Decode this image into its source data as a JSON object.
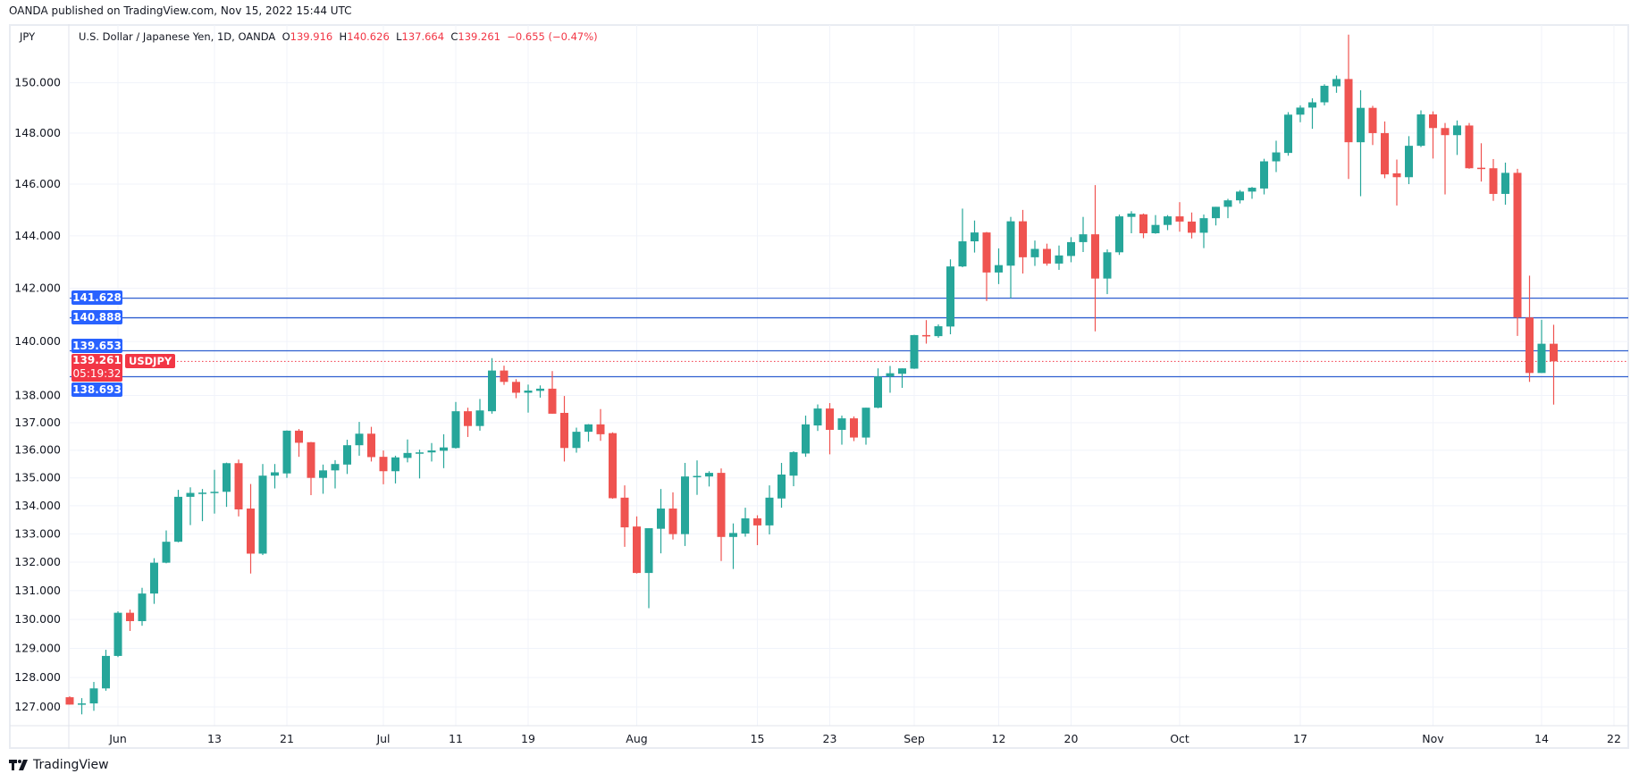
{
  "published": "OANDA published on TradingView.com, Nov 15, 2022 15:44 UTC",
  "currency": "JPY",
  "legend": {
    "title": "U.S. Dollar / Japanese Yen, 1D, OANDA",
    "o_label": "O",
    "o": "139.916",
    "h_label": "H",
    "h": "140.626",
    "l_label": "L",
    "l": "137.664",
    "c_label": "C",
    "c": "139.261",
    "change": "−0.655 (−0.47%)"
  },
  "badges": {
    "level1": "141.628",
    "level2": "140.888",
    "level3": "139.653",
    "level4": "138.693",
    "last_price": "139.261",
    "countdown": "05:19:32",
    "symbol": "USDJPY"
  },
  "branding": {
    "logo_text": "TradingView"
  },
  "colors": {
    "up": "#26a69a",
    "down": "#ef5350",
    "level_line": "#2f5fd0",
    "badge_blue": "#2962ff",
    "last_price": "#f23645",
    "grid": "#f0f3fa"
  },
  "chart_data": {
    "type": "candlestick",
    "symbol": "USDJPY",
    "interval": "1D",
    "y_scale": "log",
    "grid": true,
    "ylim": [
      126.5,
      152.5
    ],
    "y_ticks": [
      "150.000",
      "148.000",
      "146.000",
      "144.000",
      "142.000",
      "140.000",
      "138.000",
      "137.000",
      "136.000",
      "135.000",
      "134.000",
      "133.000",
      "132.000",
      "131.000",
      "130.000",
      "129.000",
      "128.000",
      "127.000"
    ],
    "x_ticks": [
      {
        "label": "Jun",
        "date": "2022-06-01"
      },
      {
        "label": "13",
        "date": "2022-06-13"
      },
      {
        "label": "21",
        "date": "2022-06-21"
      },
      {
        "label": "Jul",
        "date": "2022-07-01"
      },
      {
        "label": "11",
        "date": "2022-07-11"
      },
      {
        "label": "19",
        "date": "2022-07-19"
      },
      {
        "label": "Aug",
        "date": "2022-08-01"
      },
      {
        "label": "15",
        "date": "2022-08-15"
      },
      {
        "label": "23",
        "date": "2022-08-23"
      },
      {
        "label": "Sep",
        "date": "2022-09-01"
      },
      {
        "label": "12",
        "date": "2022-09-12"
      },
      {
        "label": "20",
        "date": "2022-09-20"
      },
      {
        "label": "Oct",
        "date": "2022-10-03"
      },
      {
        "label": "17",
        "date": "2022-10-17"
      },
      {
        "label": "Nov",
        "date": "2022-11-01"
      },
      {
        "label": "14",
        "date": "2022-11-14"
      },
      {
        "label": "22",
        "date": "2022-11-22"
      }
    ],
    "horizontal_levels": [
      141.628,
      140.888,
      139.653,
      138.693
    ],
    "last_price": 139.261,
    "columns": [
      "date",
      "open",
      "high",
      "low",
      "close"
    ],
    "candles": [
      [
        "2022-05-26",
        127.33,
        127.36,
        127.08,
        127.08
      ],
      [
        "2022-05-27",
        127.1,
        127.3,
        126.75,
        127.12
      ],
      [
        "2022-05-30",
        127.12,
        127.85,
        126.87,
        127.63
      ],
      [
        "2022-05-31",
        127.63,
        128.95,
        127.55,
        128.74
      ],
      [
        "2022-06-01",
        128.74,
        130.28,
        128.7,
        130.23
      ],
      [
        "2022-06-02",
        130.23,
        130.34,
        129.6,
        129.94
      ],
      [
        "2022-06-03",
        129.94,
        131.1,
        129.78,
        130.9
      ],
      [
        "2022-06-06",
        130.9,
        132.14,
        130.54,
        131.98
      ],
      [
        "2022-06-07",
        131.98,
        133.12,
        131.96,
        132.72
      ],
      [
        "2022-06-08",
        132.72,
        134.57,
        132.7,
        134.32
      ],
      [
        "2022-06-09",
        134.32,
        134.66,
        133.31,
        134.46
      ],
      [
        "2022-06-10",
        134.44,
        134.6,
        133.45,
        134.47
      ],
      [
        "2022-06-13",
        134.48,
        135.29,
        133.72,
        134.5
      ],
      [
        "2022-06-14",
        134.5,
        135.55,
        133.96,
        135.53
      ],
      [
        "2022-06-15",
        135.53,
        135.66,
        133.62,
        133.87
      ],
      [
        "2022-06-16",
        133.9,
        134.78,
        131.6,
        132.3
      ],
      [
        "2022-06-17",
        132.3,
        135.5,
        132.25,
        135.08
      ],
      [
        "2022-06-20",
        135.08,
        135.5,
        134.62,
        135.2
      ],
      [
        "2022-06-21",
        135.16,
        136.72,
        135.0,
        136.71
      ],
      [
        "2022-06-22",
        136.71,
        136.77,
        135.76,
        136.27
      ],
      [
        "2022-06-23",
        136.29,
        136.3,
        134.38,
        135.0
      ],
      [
        "2022-06-24",
        135.0,
        135.48,
        134.43,
        135.27
      ],
      [
        "2022-06-27",
        135.27,
        135.64,
        134.62,
        135.5
      ],
      [
        "2022-06-28",
        135.48,
        136.38,
        135.14,
        136.18
      ],
      [
        "2022-06-29",
        136.18,
        137.03,
        135.8,
        136.6
      ],
      [
        "2022-06-30",
        136.6,
        136.85,
        135.59,
        135.75
      ],
      [
        "2022-07-01",
        135.76,
        135.99,
        134.77,
        135.24
      ],
      [
        "2022-07-04",
        135.24,
        135.8,
        134.8,
        135.74
      ],
      [
        "2022-07-05",
        135.72,
        136.39,
        135.56,
        135.9
      ],
      [
        "2022-07-06",
        135.9,
        136.02,
        134.98,
        135.92
      ],
      [
        "2022-07-07",
        135.92,
        136.26,
        135.59,
        135.99
      ],
      [
        "2022-07-08",
        135.98,
        136.58,
        135.35,
        136.1
      ],
      [
        "2022-07-11",
        136.08,
        137.76,
        136.06,
        137.42
      ],
      [
        "2022-07-12",
        137.42,
        137.55,
        136.48,
        136.88
      ],
      [
        "2022-07-13",
        136.88,
        137.87,
        136.71,
        137.45
      ],
      [
        "2022-07-14",
        137.42,
        139.38,
        137.33,
        138.92
      ],
      [
        "2022-07-15",
        138.92,
        139.1,
        138.39,
        138.5
      ],
      [
        "2022-07-18",
        138.5,
        138.6,
        137.9,
        138.1
      ],
      [
        "2022-07-19",
        138.1,
        138.4,
        137.37,
        138.18
      ],
      [
        "2022-07-20",
        138.17,
        138.37,
        137.92,
        138.25
      ],
      [
        "2022-07-21",
        138.25,
        138.9,
        137.33,
        137.33
      ],
      [
        "2022-07-22",
        137.36,
        137.98,
        135.59,
        136.08
      ],
      [
        "2022-07-25",
        136.08,
        136.82,
        135.91,
        136.67
      ],
      [
        "2022-07-26",
        136.67,
        136.95,
        136.31,
        136.94
      ],
      [
        "2022-07-27",
        136.94,
        137.5,
        136.34,
        136.58
      ],
      [
        "2022-07-28",
        136.62,
        136.65,
        134.25,
        134.27
      ],
      [
        "2022-07-29",
        134.29,
        134.73,
        132.54,
        133.23
      ],
      [
        "2022-08-01",
        133.26,
        133.62,
        131.6,
        131.62
      ],
      [
        "2022-08-02",
        131.62,
        133.2,
        130.39,
        133.2
      ],
      [
        "2022-08-03",
        133.18,
        134.6,
        132.31,
        133.9
      ],
      [
        "2022-08-04",
        133.9,
        134.48,
        132.8,
        132.99
      ],
      [
        "2022-08-05",
        132.99,
        135.54,
        132.57,
        135.05
      ],
      [
        "2022-08-08",
        135.03,
        135.63,
        134.39,
        135.07
      ],
      [
        "2022-08-09",
        135.05,
        135.24,
        134.69,
        135.18
      ],
      [
        "2022-08-10",
        135.18,
        135.34,
        132.04,
        132.89
      ],
      [
        "2022-08-11",
        132.89,
        133.37,
        131.76,
        133.03
      ],
      [
        "2022-08-12",
        133.01,
        133.93,
        132.9,
        133.55
      ],
      [
        "2022-08-15",
        133.55,
        133.66,
        132.6,
        133.3
      ],
      [
        "2022-08-16",
        133.3,
        134.73,
        132.98,
        134.29
      ],
      [
        "2022-08-17",
        134.26,
        135.54,
        133.93,
        135.12
      ],
      [
        "2022-08-18",
        135.08,
        135.96,
        134.7,
        135.93
      ],
      [
        "2022-08-19",
        135.88,
        137.26,
        135.76,
        136.94
      ],
      [
        "2022-08-22",
        136.9,
        137.67,
        136.7,
        137.52
      ],
      [
        "2022-08-23",
        137.52,
        137.72,
        135.85,
        136.74
      ],
      [
        "2022-08-24",
        136.74,
        137.26,
        136.2,
        137.16
      ],
      [
        "2022-08-25",
        137.16,
        137.23,
        136.33,
        136.46
      ],
      [
        "2022-08-26",
        136.46,
        137.55,
        136.2,
        137.55
      ],
      [
        "2022-08-29",
        137.55,
        139.0,
        137.53,
        138.7
      ],
      [
        "2022-08-30",
        138.7,
        139.09,
        138.1,
        138.82
      ],
      [
        "2022-08-31",
        138.8,
        139.0,
        138.28,
        139.0
      ],
      [
        "2022-09-01",
        138.99,
        140.25,
        138.98,
        140.24
      ],
      [
        "2022-09-02",
        140.24,
        140.8,
        139.92,
        140.22
      ],
      [
        "2022-09-05",
        140.2,
        140.64,
        140.14,
        140.57
      ],
      [
        "2022-09-06",
        140.56,
        143.1,
        140.27,
        142.83
      ],
      [
        "2022-09-07",
        142.83,
        145.05,
        142.8,
        143.79
      ],
      [
        "2022-09-08",
        143.79,
        144.59,
        143.36,
        144.13
      ],
      [
        "2022-09-09",
        144.13,
        144.15,
        141.52,
        142.6
      ],
      [
        "2022-09-12",
        142.6,
        143.52,
        142.16,
        142.88
      ],
      [
        "2022-09-13",
        142.86,
        144.73,
        141.63,
        144.56
      ],
      [
        "2022-09-14",
        144.56,
        145.0,
        142.56,
        143.18
      ],
      [
        "2022-09-15",
        143.18,
        143.82,
        142.85,
        143.5
      ],
      [
        "2022-09-16",
        143.5,
        143.7,
        142.86,
        142.94
      ],
      [
        "2022-09-19",
        142.94,
        143.63,
        142.7,
        143.25
      ],
      [
        "2022-09-20",
        143.23,
        143.95,
        142.99,
        143.76
      ],
      [
        "2022-09-21",
        143.76,
        144.73,
        143.38,
        144.06
      ],
      [
        "2022-09-22",
        144.06,
        145.96,
        140.38,
        142.37
      ],
      [
        "2022-09-23",
        142.37,
        143.48,
        141.78,
        143.37
      ],
      [
        "2022-09-26",
        143.37,
        144.82,
        143.27,
        144.75
      ],
      [
        "2022-09-27",
        144.73,
        144.95,
        144.1,
        144.86
      ],
      [
        "2022-09-28",
        144.83,
        144.86,
        143.91,
        144.1
      ],
      [
        "2022-09-29",
        144.1,
        144.8,
        144.08,
        144.42
      ],
      [
        "2022-09-30",
        144.42,
        144.8,
        144.22,
        144.75
      ],
      [
        "2022-10-03",
        144.75,
        145.3,
        144.16,
        144.55
      ],
      [
        "2022-10-04",
        144.55,
        144.9,
        143.9,
        144.12
      ],
      [
        "2022-10-05",
        144.12,
        144.82,
        143.53,
        144.68
      ],
      [
        "2022-10-06",
        144.68,
        145.12,
        144.4,
        145.12
      ],
      [
        "2022-10-07",
        145.12,
        145.43,
        144.68,
        145.37
      ],
      [
        "2022-10-10",
        145.37,
        145.77,
        145.25,
        145.71
      ],
      [
        "2022-10-11",
        145.71,
        145.89,
        145.43,
        145.86
      ],
      [
        "2022-10-12",
        145.83,
        146.99,
        145.6,
        146.89
      ],
      [
        "2022-10-13",
        146.89,
        147.7,
        146.47,
        147.24
      ],
      [
        "2022-10-14",
        147.22,
        148.83,
        147.11,
        148.73
      ],
      [
        "2022-10-17",
        148.73,
        149.1,
        148.43,
        149.01
      ],
      [
        "2022-10-18",
        149.01,
        149.38,
        148.17,
        149.22
      ],
      [
        "2022-10-19",
        149.22,
        149.94,
        149.1,
        149.88
      ],
      [
        "2022-10-20",
        149.86,
        150.29,
        149.6,
        150.15
      ],
      [
        "2022-10-21",
        150.15,
        151.94,
        146.2,
        147.64
      ],
      [
        "2022-10-24",
        147.64,
        149.7,
        145.53,
        149.0
      ],
      [
        "2022-10-25",
        149.0,
        149.08,
        147.53,
        148.0
      ],
      [
        "2022-10-26",
        148.0,
        148.46,
        146.23,
        146.38
      ],
      [
        "2022-10-27",
        146.42,
        146.96,
        145.17,
        146.27
      ],
      [
        "2022-10-28",
        146.27,
        147.88,
        146.0,
        147.5
      ],
      [
        "2022-10-31",
        147.5,
        148.9,
        147.45,
        148.74
      ],
      [
        "2022-11-01",
        148.74,
        148.86,
        147.0,
        148.2
      ],
      [
        "2022-11-02",
        148.2,
        148.4,
        145.6,
        147.92
      ],
      [
        "2022-11-03",
        147.92,
        148.5,
        147.14,
        148.3
      ],
      [
        "2022-11-04",
        148.3,
        148.4,
        146.6,
        146.62
      ],
      [
        "2022-11-07",
        146.64,
        147.6,
        146.1,
        146.62
      ],
      [
        "2022-11-08",
        146.62,
        146.98,
        145.35,
        145.62
      ],
      [
        "2022-11-09",
        145.62,
        146.84,
        145.2,
        146.44
      ],
      [
        "2022-11-10",
        146.44,
        146.6,
        140.21,
        140.9
      ],
      [
        "2022-11-11",
        140.9,
        142.48,
        138.5,
        138.83
      ],
      [
        "2022-11-14",
        138.83,
        140.81,
        138.83,
        139.916
      ],
      [
        "2022-11-15",
        139.916,
        140.626,
        137.664,
        139.261
      ]
    ]
  }
}
